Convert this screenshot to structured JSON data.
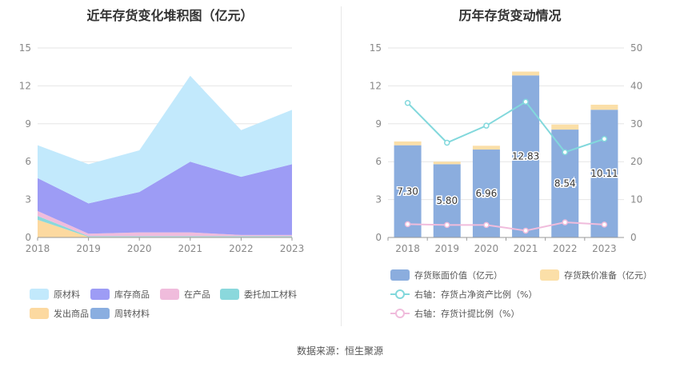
{
  "footer": "数据来源：恒生聚源",
  "chart_data": [
    {
      "type": "area",
      "title": "近年存货变化堆积图（亿元）",
      "x": [
        "2018",
        "2019",
        "2020",
        "2021",
        "2022",
        "2023"
      ],
      "ylim": [
        0,
        15
      ],
      "yticks": [
        0,
        3,
        6,
        9,
        12,
        15
      ],
      "stacked": true,
      "series": [
        {
          "name": "发出商品",
          "color": "#fcd9a0",
          "values": [
            1.4,
            0.05,
            0.05,
            0.05,
            0.05,
            0.05
          ]
        },
        {
          "name": "委托加工材料",
          "color": "#8ad8dc",
          "values": [
            0.3,
            0.05,
            0.05,
            0.05,
            0.05,
            0.05
          ]
        },
        {
          "name": "在产品",
          "color": "#f0bcdc",
          "values": [
            0.4,
            0.2,
            0.3,
            0.3,
            0.1,
            0.1
          ]
        },
        {
          "name": "周转材料",
          "color": "#8aaee0",
          "values": [
            0.0,
            0.0,
            0.0,
            0.0,
            0.0,
            0.0
          ]
        },
        {
          "name": "库存商品",
          "color": "#9d9cf5",
          "values": [
            2.6,
            2.4,
            3.2,
            5.6,
            4.6,
            5.6
          ]
        },
        {
          "name": "原材料",
          "color": "#c2e9fc",
          "values": [
            2.6,
            3.1,
            3.3,
            6.8,
            3.7,
            4.3
          ]
        }
      ],
      "legend": [
        "原材料",
        "库存商品",
        "在产品",
        "委托加工材料",
        "发出商品",
        "周转材料"
      ],
      "legend_position": "bottom",
      "grid": true
    },
    {
      "type": "bar",
      "title": "历年存货变动情况",
      "x": [
        "2018",
        "2019",
        "2020",
        "2021",
        "2022",
        "2023"
      ],
      "ylim": [
        0,
        15
      ],
      "yticks": [
        0,
        3,
        6,
        9,
        12,
        15
      ],
      "y2lim": [
        0,
        50
      ],
      "y2ticks": [
        0,
        10,
        20,
        30,
        40,
        50
      ],
      "series": [
        {
          "name": "存货账面价值（亿元）",
          "type": "bar",
          "color": "#8badde",
          "values": [
            7.3,
            5.8,
            6.96,
            12.83,
            8.54,
            10.11
          ],
          "labels": [
            "7.30",
            "5.80",
            "6.96",
            "12.83",
            "8.54",
            "10.11"
          ]
        },
        {
          "name": "存货跌价准备（亿元）",
          "type": "bar",
          "color": "#fbdfa8",
          "values": [
            0.3,
            0.2,
            0.3,
            0.3,
            0.4,
            0.4
          ]
        },
        {
          "name": "右轴：存货占净资产比例（%）",
          "type": "line",
          "axis": "right",
          "color": "#82d8dc",
          "values": [
            35.5,
            25.0,
            29.5,
            35.8,
            22.5,
            26.0
          ]
        },
        {
          "name": "右轴：存货计提比例（%）",
          "type": "line",
          "axis": "right",
          "color": "#f0bcdc",
          "values": [
            3.5,
            3.3,
            3.3,
            1.8,
            4.0,
            3.4
          ]
        }
      ],
      "legend_position": "bottom",
      "grid": true
    }
  ]
}
